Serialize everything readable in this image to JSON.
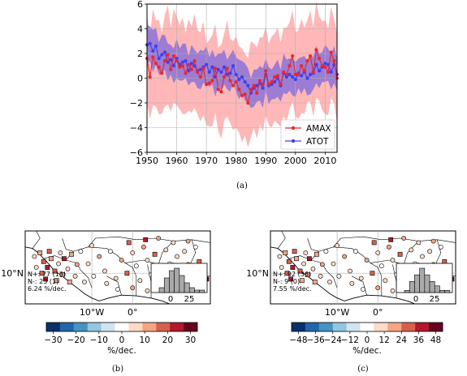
{
  "chart_data": [
    {
      "type": "line",
      "x_start": 1950,
      "x_end": 2014,
      "xlim": [
        1950,
        2014
      ],
      "ylim": [
        -6,
        6
      ],
      "xticks": [
        "1950",
        "1960",
        "1970",
        "1980",
        "1990",
        "2000",
        "2010"
      ],
      "yticks": [
        "6",
        "4",
        "2",
        "0",
        "−2",
        "−4",
        "−6"
      ],
      "grid": true,
      "legend_position": "lower-right",
      "series": [
        {
          "name": "AMAX",
          "color": "#e8272d",
          "band_color": "#ffb3b3",
          "values": [
            1.6,
            0.1,
            1.7,
            1.2,
            0.9,
            0.4,
            1.4,
            1.9,
            0.7,
            1.8,
            1.4,
            0.9,
            1.0,
            0.4,
            1.1,
            0.7,
            1.4,
            0.5,
            0.1,
            0.8,
            -0.5,
            -0.4,
            -0.2,
            0.8,
            -0.9,
            -1.1,
            0.1,
            0.8,
            -0.2,
            -0.6,
            -0.3,
            -0.9,
            -1.4,
            -1.3,
            -2.0,
            -0.9,
            -0.6,
            -1.2,
            -0.2,
            -0.5,
            0.6,
            -0.5,
            -0.3,
            0.1,
            0.2,
            -0.5,
            0.5,
            0.3,
            1.0,
            1.8,
            0.3,
            0.3,
            1.0,
            0.6,
            1.4,
            1.8,
            0.5,
            2.3,
            1.6,
            1.0,
            0.9,
            0.5,
            2.1,
            1.4,
            0.0
          ],
          "band_half_width": [
            3.6,
            3.4,
            3.9,
            3.5,
            3.8,
            3.3,
            3.7,
            4.0,
            3.4,
            3.8,
            3.6,
            3.4,
            3.9,
            3.3,
            3.7,
            3.5,
            3.8,
            3.4,
            3.6,
            3.8,
            3.3,
            3.5,
            3.7,
            3.6,
            3.4,
            3.8,
            3.5,
            3.9,
            3.4,
            3.6,
            3.7,
            3.5,
            3.8,
            3.3,
            3.6,
            3.9,
            3.4,
            3.7,
            3.5,
            3.8,
            3.6,
            3.3,
            3.7,
            3.5,
            3.9,
            3.4,
            3.6,
            3.8,
            3.5,
            3.7,
            3.4,
            3.6,
            3.8,
            3.5,
            3.3,
            3.7,
            3.6,
            3.9,
            3.4,
            3.6,
            3.8,
            3.5,
            3.7,
            3.4,
            3.6
          ]
        },
        {
          "name": "ATOT",
          "color": "#3f3ff0",
          "band_color": "#8c72d8",
          "values": [
            2.7,
            2.8,
            2.2,
            2.6,
            1.6,
            1.9,
            2.1,
            1.3,
            1.5,
            1.0,
            1.6,
            1.1,
            1.3,
            1.4,
            0.6,
            1.2,
            1.0,
            0.6,
            0.7,
            0.9,
            1.1,
            0.5,
            0.9,
            0.1,
            0.7,
            0.5,
            0.9,
            0.3,
            0.4,
            1.0,
            0.3,
            -0.1,
            0.1,
            -0.3,
            -0.6,
            -1.2,
            -0.8,
            -0.6,
            -0.4,
            -0.8,
            0.3,
            -0.6,
            -0.5,
            -0.3,
            0.0,
            -0.6,
            0.4,
            0.1,
            0.3,
            0.1,
            -0.1,
            0.4,
            0.2,
            0.5,
            0.0,
            0.3,
            0.4,
            1.1,
            0.6,
            0.9,
            1.2,
            1.1,
            0.5,
            1.1,
            0.3
          ],
          "band_half_width": [
            1.6,
            1.4,
            1.7,
            1.5,
            1.3,
            1.6,
            1.4,
            1.5,
            1.2,
            1.4,
            1.6,
            1.3,
            1.5,
            1.4,
            1.2,
            1.5,
            1.3,
            1.4,
            1.6,
            1.3,
            1.5,
            1.2,
            1.4,
            1.6,
            1.3,
            1.5,
            1.4,
            1.2,
            1.5,
            1.3,
            1.4,
            1.6,
            1.3,
            1.5,
            1.4,
            1.2,
            1.5,
            1.3,
            1.4,
            1.6,
            1.3,
            1.5,
            1.2,
            1.4,
            1.5,
            1.3,
            1.6,
            1.4,
            1.3,
            1.5,
            1.4,
            1.2,
            1.5,
            1.3,
            1.4,
            1.6,
            1.3,
            1.5,
            1.4,
            1.2,
            1.5,
            1.3,
            1.4,
            1.5,
            1.3
          ]
        }
      ],
      "caption": "(a)"
    },
    {
      "type": "map",
      "lat_label": "10°N",
      "lon_labels": [
        "10°W",
        "0°"
      ],
      "stats": [
        "N+: 77 (13)",
        "N-: 23 (1)",
        "6.24 %/dec."
      ],
      "hist_tick_labels": [
        "0",
        "25"
      ],
      "hist_values": [
        2,
        6,
        9,
        10,
        7,
        4,
        2,
        1,
        1
      ],
      "colorbar_ticks": [
        "−30",
        "−20",
        "−10",
        "0",
        "10",
        "20",
        "30"
      ],
      "colorbar_label": "%/dec.",
      "caption": "(b)"
    },
    {
      "type": "map",
      "lat_label": "10°N",
      "lon_labels": [
        "10°W",
        "0°"
      ],
      "stats": [
        "N+: 92 (36)",
        "N-: 9 (0)",
        "7.55 %/dec."
      ],
      "hist_tick_labels": [
        "0",
        "25"
      ],
      "hist_values": [
        1,
        5,
        8,
        11,
        8,
        5,
        3,
        1,
        1
      ],
      "colorbar_ticks": [
        "−48",
        "−36",
        "−24",
        "−12",
        "0",
        "12",
        "24",
        "36",
        "48"
      ],
      "colorbar_label": "%/dec.",
      "caption": "(c)"
    }
  ]
}
